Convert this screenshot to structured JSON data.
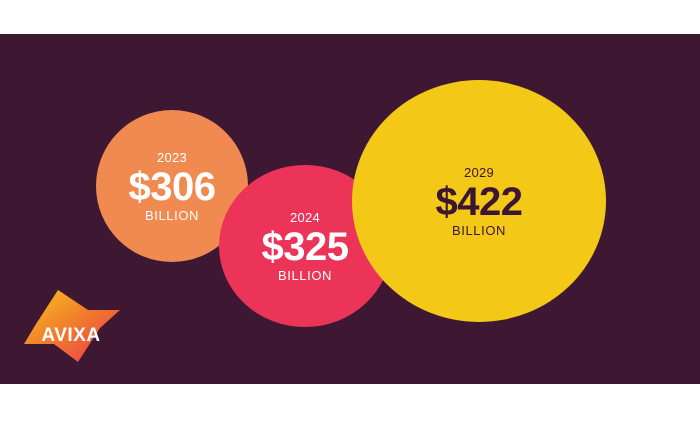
{
  "colors": {
    "background": "#3e1833",
    "orange": "#f08a51",
    "red": "#ec3358",
    "yellow": "#f4c817",
    "dark_text": "#3a1633",
    "logo_yellow": "#f7c51c",
    "logo_orange": "#f0722f",
    "logo_red": "#e93553"
  },
  "chart_data": {
    "type": "bubble",
    "categories": [
      "2023",
      "2024",
      "2029"
    ],
    "values": [
      306,
      325,
      422
    ],
    "value_labels": [
      "$306",
      "$325",
      "$422"
    ],
    "unit_label": "BILLION"
  },
  "logo": {
    "text": "AVIXA",
    "icon": "avixa-logo-icon"
  }
}
